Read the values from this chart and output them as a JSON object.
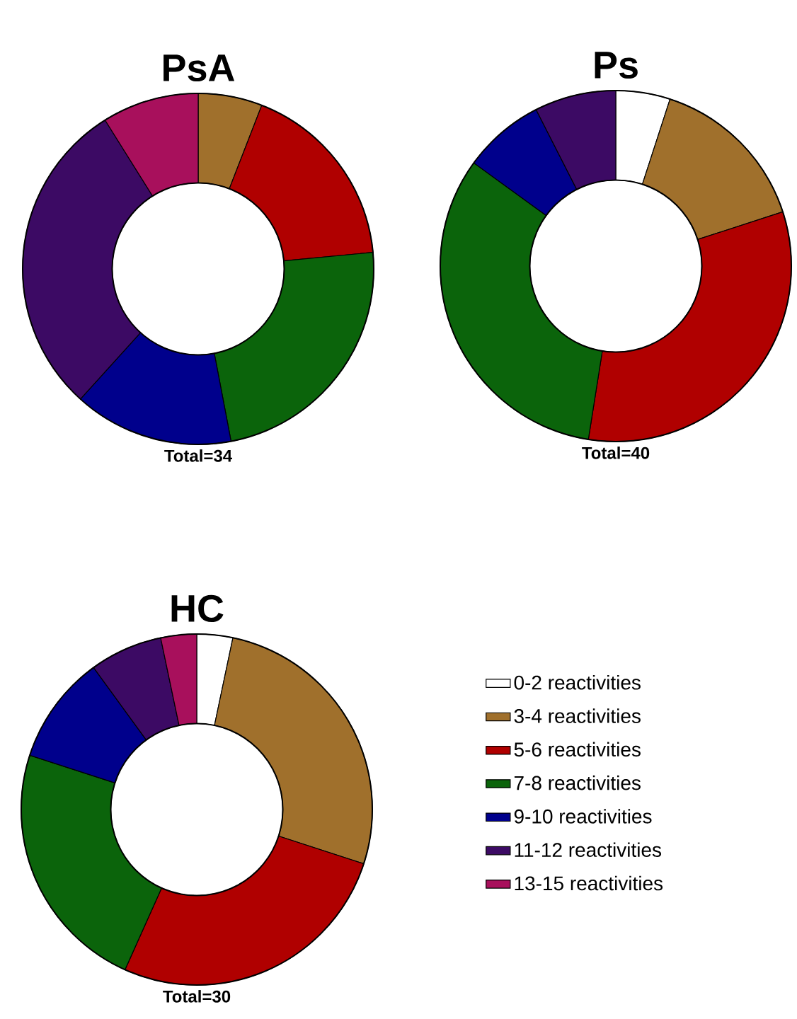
{
  "chart_data": [
    {
      "type": "donut",
      "title": "PsA",
      "categories": [
        null,
        null,
        null,
        null,
        null,
        null,
        null
      ],
      "values": [
        0,
        5.9,
        17.6,
        23.5,
        14.7,
        29.4,
        8.9
      ],
      "colors": [
        "#ffffff",
        "#a0702c",
        "#b00000",
        "#0b640b",
        "#00008c",
        "#3c0a64",
        "#a8105c"
      ],
      "annotations": [
        "Total=34"
      ],
      "legend": false
    },
    {
      "type": "donut",
      "title": "Ps",
      "categories": [
        null,
        null,
        null,
        null,
        null,
        null,
        null
      ],
      "values": [
        5,
        15,
        32.5,
        32.5,
        7.5,
        7.5,
        0
      ],
      "colors": [
        "#ffffff",
        "#a0702c",
        "#b00000",
        "#0b640b",
        "#00008c",
        "#3c0a64",
        "#a8105c"
      ],
      "annotations": [
        "Total=40"
      ],
      "legend": false
    },
    {
      "type": "donut",
      "title": "HC",
      "categories": [
        "0-2 reactivities",
        "3-4 reactivities",
        "5-6 reactivities",
        "7-8 reactivities",
        "9-10 reactivities",
        "11-12 reactivities",
        "13-15 reactivities"
      ],
      "values": [
        3.3,
        26.7,
        26.7,
        23.3,
        10,
        6.7,
        3.3
      ],
      "colors": [
        "#ffffff",
        "#a0702c",
        "#b00000",
        "#0b640b",
        "#00008c",
        "#3c0a64",
        "#a8105c"
      ],
      "annotations": [
        "Total=30"
      ],
      "legend": "right"
    }
  ]
}
